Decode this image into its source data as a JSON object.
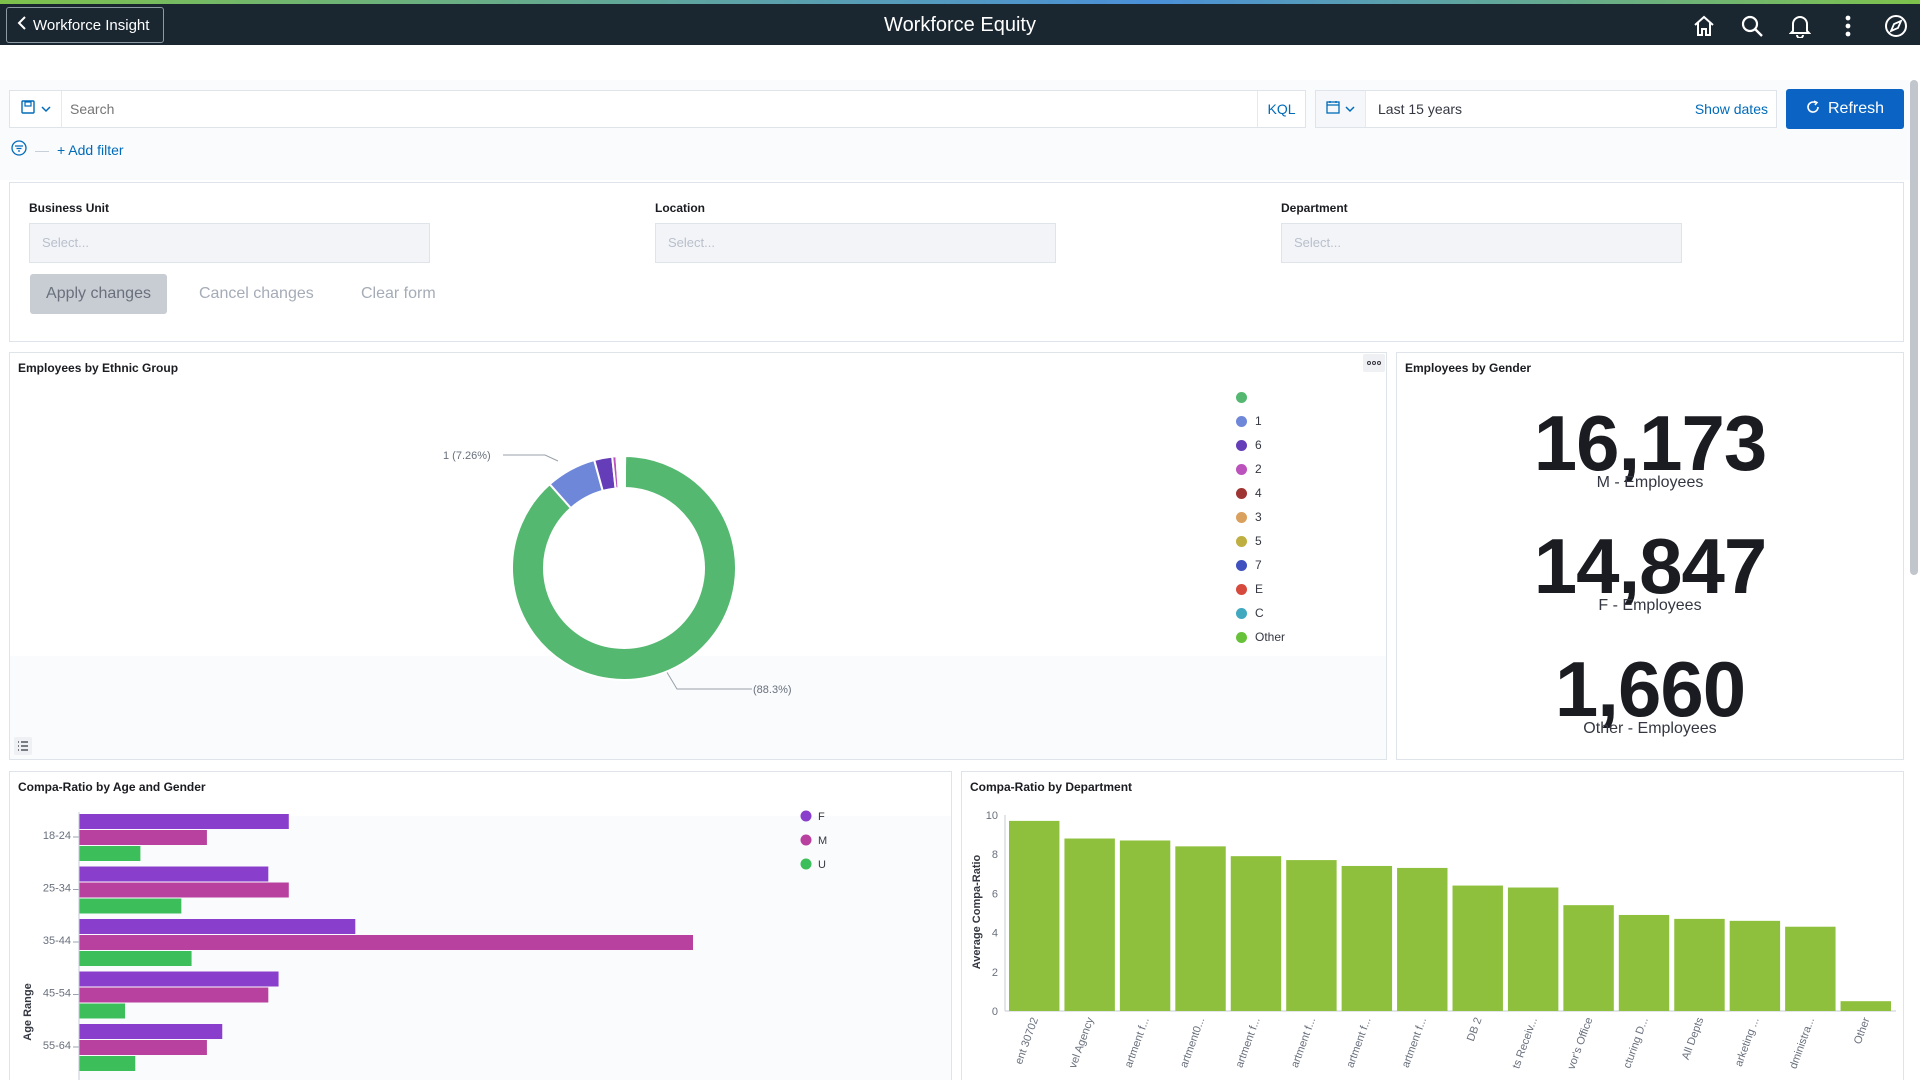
{
  "header": {
    "back_label": "Workforce Insight",
    "title": "Workforce Equity",
    "icons": [
      "home-icon",
      "search-icon",
      "bell-icon",
      "more-vertical-icon",
      "compass-icon"
    ]
  },
  "query_bar": {
    "search_placeholder": "Search",
    "kql_label": "KQL",
    "date_range": "Last 15 years",
    "show_dates_label": "Show dates",
    "refresh_label": "Refresh",
    "add_filter_label": "+ Add filter"
  },
  "controls": {
    "fields": [
      {
        "label": "Business Unit",
        "placeholder": "Select..."
      },
      {
        "label": "Location",
        "placeholder": "Select..."
      },
      {
        "label": "Department",
        "placeholder": "Select..."
      }
    ],
    "apply_label": "Apply changes",
    "cancel_label": "Cancel changes",
    "clear_label": "Clear form"
  },
  "ethnic_panel": {
    "title": "Employees by Ethnic Group",
    "slice_label_small": "1 (7.26%)",
    "slice_label_large": "(88.3%)"
  },
  "gender_panel": {
    "title": "Employees by Gender",
    "metrics": [
      {
        "value": "16,173",
        "caption": "M - Employees"
      },
      {
        "value": "14,847",
        "caption": "F - Employees"
      },
      {
        "value": "1,660",
        "caption": "Other - Employees"
      }
    ]
  },
  "age_panel": {
    "title": "Compa-Ratio by Age and Gender"
  },
  "dept_panel": {
    "title": "Compa-Ratio by Department"
  },
  "chart_data": [
    {
      "type": "pie",
      "title": "Employees by Ethnic Group",
      "donut": true,
      "legend_position": "right",
      "slices": [
        {
          "label": "",
          "percent": 88.3,
          "color": "#54b870"
        },
        {
          "label": "1",
          "percent": 7.26,
          "color": "#6f87d8"
        },
        {
          "label": "6",
          "percent": 2.6,
          "color": "#663db8"
        },
        {
          "label": "2",
          "percent": 0.6,
          "color": "#bc52bc"
        },
        {
          "label": "4",
          "percent": 0.3,
          "color": "#9e3533"
        },
        {
          "label": "3",
          "percent": 0.3,
          "color": "#daa05d"
        },
        {
          "label": "5",
          "percent": 0.2,
          "color": "#bfaf40"
        },
        {
          "label": "7",
          "percent": 0.15,
          "color": "#4050bf"
        },
        {
          "label": "E",
          "percent": 0.1,
          "color": "#d6493d"
        },
        {
          "label": "C",
          "percent": 0.1,
          "color": "#40a8bf"
        },
        {
          "label": "Other",
          "percent": 0.09,
          "color": "#68c239"
        }
      ]
    },
    {
      "type": "bar",
      "orientation": "horizontal",
      "title": "Compa-Ratio by Age and Gender",
      "ylabel": "Age Range",
      "categories": [
        "18-24",
        "25-34",
        "35-44",
        "45-54",
        "55-64"
      ],
      "xlim": [
        0,
        12
      ],
      "legend_position": "top-right",
      "series": [
        {
          "name": "F",
          "color": "#8a3fcc",
          "values": [
            4.1,
            3.7,
            5.4,
            3.9,
            2.8
          ]
        },
        {
          "name": "M",
          "color": "#b8409f",
          "values": [
            2.5,
            4.1,
            12.0,
            3.7,
            2.5
          ]
        },
        {
          "name": "U",
          "color": "#3cbf5a",
          "values": [
            1.2,
            2.0,
            2.2,
            0.9,
            1.1
          ]
        }
      ]
    },
    {
      "type": "bar",
      "title": "Compa-Ratio by Department",
      "ylabel": "Average Compa-Ratio",
      "ylim": [
        0,
        10
      ],
      "yticks": [
        0,
        2,
        4,
        6,
        8,
        10
      ],
      "color": "#8fc03d",
      "categories": [
        "ent 30702",
        "vel Agency",
        "artment f...",
        "artment0...",
        "artment f...",
        "artment f...",
        "artment f...",
        "artment f...",
        "DB 2",
        "ts Receiv...",
        "vor's Office",
        "cturing D...",
        "All Depts",
        "arketing ...",
        "dministra...",
        "Other"
      ],
      "values": [
        9.7,
        8.8,
        8.7,
        8.4,
        7.9,
        7.7,
        7.4,
        7.3,
        6.4,
        6.3,
        5.4,
        4.9,
        4.7,
        4.6,
        4.3,
        0.5
      ]
    }
  ]
}
